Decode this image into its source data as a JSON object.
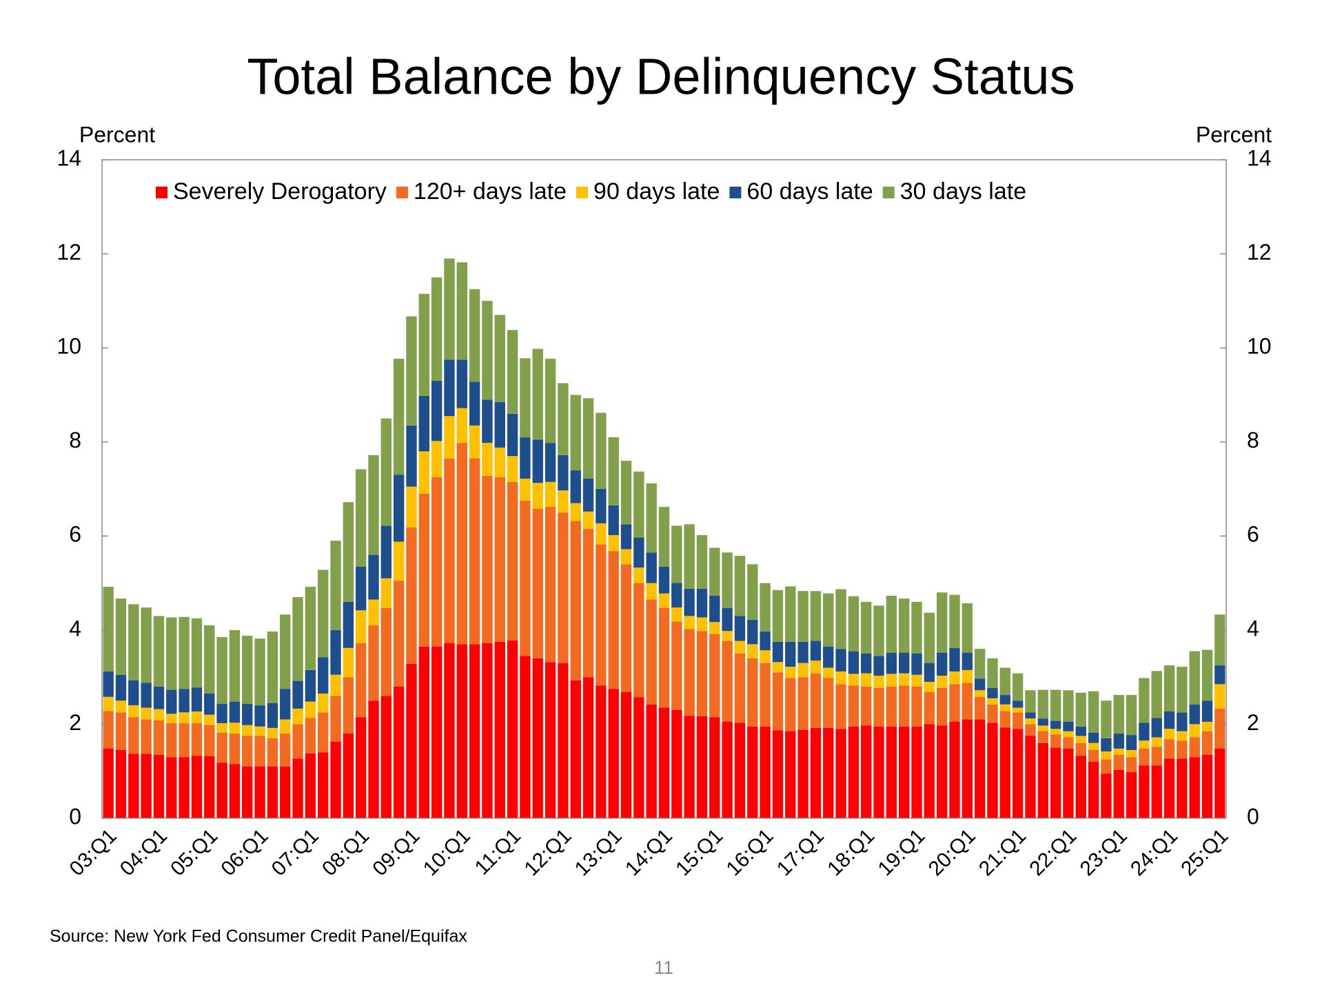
{
  "chart_data": {
    "type": "stacked_bar",
    "title": "Total Balance by Delinquency Status",
    "y_label": "Percent",
    "y2_label": "Percent",
    "source": "Source: New York Fed Consumer Credit Panel/Equifax",
    "page_number": "11",
    "legend": "top",
    "ylim": [
      0,
      14
    ],
    "yticks": [
      0,
      2,
      4,
      6,
      8,
      10,
      12,
      14
    ],
    "y2lim": [
      0,
      14
    ],
    "y2ticks": [
      0,
      2,
      4,
      6,
      8,
      10,
      12,
      14
    ],
    "categories": [
      "03:Q1",
      null,
      null,
      null,
      "04:Q1",
      null,
      null,
      null,
      "05:Q1",
      null,
      null,
      null,
      "06:Q1",
      null,
      null,
      null,
      "07:Q1",
      null,
      null,
      null,
      "08:Q1",
      null,
      null,
      null,
      "09:Q1",
      null,
      null,
      null,
      "10:Q1",
      null,
      null,
      null,
      "11:Q1",
      null,
      null,
      null,
      "12:Q1",
      null,
      null,
      null,
      "13:Q1",
      null,
      null,
      null,
      "14:Q1",
      null,
      null,
      null,
      "15:Q1",
      null,
      null,
      null,
      "16:Q1",
      null,
      null,
      null,
      "17:Q1",
      null,
      null,
      null,
      "18:Q1",
      null,
      null,
      null,
      "19:Q1",
      null,
      null,
      null,
      "20:Q1",
      null,
      null,
      null,
      "21:Q1",
      null,
      null,
      null,
      "22:Q1",
      null,
      null,
      null,
      "23:Q1",
      null,
      null,
      null,
      "24:Q1",
      null,
      null,
      null,
      "25:Q1"
    ],
    "series": [
      {
        "name": "Severely Derogatory",
        "color": "#ff0000",
        "values": [
          1.48,
          1.45,
          1.37,
          1.37,
          1.35,
          1.3,
          1.3,
          1.33,
          1.32,
          1.18,
          1.15,
          1.1,
          1.1,
          1.1,
          1.1,
          1.27,
          1.38,
          1.4,
          1.63,
          1.8,
          2.15,
          2.5,
          2.6,
          2.8,
          3.28,
          3.65,
          3.65,
          3.72,
          3.7,
          3.7,
          3.72,
          3.75,
          3.78,
          3.45,
          3.4,
          3.32,
          3.3,
          2.93,
          3.0,
          2.82,
          2.75,
          2.68,
          2.57,
          2.42,
          2.35,
          2.3,
          2.18,
          2.17,
          2.15,
          2.05,
          2.03,
          1.95,
          1.95,
          1.87,
          1.85,
          1.88,
          1.92,
          1.92,
          1.9,
          1.95,
          1.97,
          1.95,
          1.95,
          1.95,
          1.95,
          2.0,
          1.97,
          2.05,
          2.1,
          2.1,
          2.03,
          1.93,
          1.9,
          1.75,
          1.6,
          1.5,
          1.48,
          1.33,
          1.2,
          0.95,
          1.03,
          0.98,
          1.12,
          1.12,
          1.27,
          1.27,
          1.3,
          1.35,
          1.48
        ]
      },
      {
        "name": "120+ days late",
        "color": "#f26b21",
        "values": [
          0.8,
          0.8,
          0.78,
          0.73,
          0.73,
          0.72,
          0.72,
          0.69,
          0.66,
          0.64,
          0.65,
          0.65,
          0.65,
          0.6,
          0.7,
          0.73,
          0.75,
          0.85,
          0.97,
          1.2,
          1.57,
          1.6,
          1.87,
          2.25,
          2.9,
          3.25,
          3.6,
          3.93,
          4.28,
          3.95,
          3.56,
          3.5,
          3.37,
          3.3,
          3.18,
          3.3,
          3.2,
          3.39,
          3.15,
          3.0,
          2.93,
          2.72,
          2.43,
          2.23,
          2.12,
          1.88,
          1.84,
          1.81,
          1.77,
          1.72,
          1.47,
          1.45,
          1.35,
          1.23,
          1.13,
          1.12,
          1.16,
          1.06,
          0.95,
          0.87,
          0.83,
          0.82,
          0.85,
          0.87,
          0.85,
          0.68,
          0.8,
          0.8,
          0.78,
          0.48,
          0.39,
          0.35,
          0.35,
          0.25,
          0.25,
          0.28,
          0.24,
          0.27,
          0.25,
          0.3,
          0.32,
          0.32,
          0.36,
          0.4,
          0.41,
          0.38,
          0.42,
          0.5,
          0.85
        ]
      },
      {
        "name": "90 days late",
        "color": "#ffc000",
        "values": [
          0.3,
          0.25,
          0.25,
          0.25,
          0.24,
          0.2,
          0.23,
          0.25,
          0.22,
          0.2,
          0.23,
          0.23,
          0.2,
          0.22,
          0.3,
          0.33,
          0.35,
          0.4,
          0.45,
          0.62,
          0.7,
          0.55,
          0.63,
          0.83,
          0.87,
          0.9,
          0.77,
          0.9,
          0.74,
          0.7,
          0.7,
          0.63,
          0.55,
          0.47,
          0.55,
          0.53,
          0.47,
          0.38,
          0.37,
          0.45,
          0.34,
          0.32,
          0.33,
          0.35,
          0.31,
          0.3,
          0.28,
          0.29,
          0.25,
          0.21,
          0.27,
          0.3,
          0.27,
          0.22,
          0.24,
          0.3,
          0.27,
          0.22,
          0.27,
          0.25,
          0.28,
          0.26,
          0.27,
          0.26,
          0.25,
          0.22,
          0.26,
          0.27,
          0.27,
          0.14,
          0.13,
          0.14,
          0.1,
          0.12,
          0.12,
          0.12,
          0.13,
          0.15,
          0.15,
          0.17,
          0.13,
          0.15,
          0.17,
          0.2,
          0.22,
          0.2,
          0.28,
          0.2,
          0.52
        ]
      },
      {
        "name": "60 days late",
        "color": "#1f4e8c",
        "values": [
          0.54,
          0.55,
          0.53,
          0.53,
          0.48,
          0.51,
          0.5,
          0.51,
          0.45,
          0.41,
          0.45,
          0.45,
          0.45,
          0.53,
          0.65,
          0.59,
          0.67,
          0.77,
          0.95,
          0.98,
          0.93,
          0.95,
          1.12,
          1.42,
          1.3,
          1.18,
          1.28,
          1.2,
          1.03,
          0.93,
          0.92,
          0.97,
          0.9,
          0.88,
          0.92,
          0.83,
          0.75,
          0.7,
          0.7,
          0.73,
          0.63,
          0.53,
          0.64,
          0.65,
          0.57,
          0.52,
          0.58,
          0.61,
          0.56,
          0.49,
          0.53,
          0.52,
          0.4,
          0.43,
          0.53,
          0.45,
          0.42,
          0.45,
          0.48,
          0.48,
          0.42,
          0.42,
          0.45,
          0.44,
          0.45,
          0.4,
          0.49,
          0.5,
          0.37,
          0.25,
          0.22,
          0.2,
          0.15,
          0.13,
          0.15,
          0.17,
          0.2,
          0.2,
          0.22,
          0.28,
          0.32,
          0.32,
          0.38,
          0.41,
          0.37,
          0.4,
          0.42,
          0.45,
          0.4
        ]
      },
      {
        "name": "30 days late",
        "color": "#82a04c",
        "values": [
          1.8,
          1.62,
          1.62,
          1.6,
          1.5,
          1.54,
          1.53,
          1.47,
          1.45,
          1.42,
          1.52,
          1.45,
          1.42,
          1.52,
          1.58,
          1.78,
          1.77,
          1.86,
          1.9,
          2.12,
          2.07,
          2.12,
          2.28,
          2.47,
          2.32,
          2.17,
          2.2,
          2.15,
          2.07,
          1.97,
          2.1,
          1.85,
          1.78,
          1.68,
          1.93,
          1.79,
          1.53,
          1.6,
          1.71,
          1.62,
          1.45,
          1.35,
          1.4,
          1.47,
          1.27,
          1.22,
          1.37,
          1.14,
          1.02,
          1.18,
          1.28,
          1.18,
          1.03,
          1.1,
          1.18,
          1.08,
          1.06,
          1.13,
          1.27,
          1.17,
          1.1,
          1.07,
          1.21,
          1.15,
          1.1,
          1.07,
          1.28,
          1.13,
          1.05,
          0.63,
          0.63,
          0.58,
          0.58,
          0.47,
          0.61,
          0.66,
          0.67,
          0.72,
          0.88,
          0.8,
          0.82,
          0.85,
          0.95,
          1.0,
          0.98,
          0.97,
          1.13,
          1.08,
          1.08
        ]
      }
    ]
  }
}
